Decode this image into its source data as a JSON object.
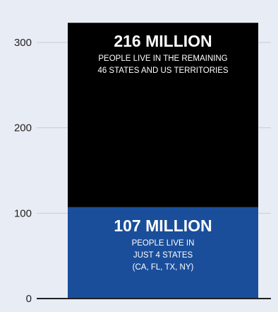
{
  "chart_data": {
    "type": "bar",
    "stacked": true,
    "title": "",
    "xlabel": "",
    "ylabel": "",
    "ylim": [
      0,
      322
    ],
    "yticks": [
      0,
      100,
      200,
      300
    ],
    "grid": true,
    "series": [
      {
        "value": 107,
        "color": "#1a4e9b",
        "label_big": "107 MILLION",
        "label_lines": [
          "PEOPLE LIVE IN",
          "JUST 4 STATES",
          "(CA, FL, TX, NY)"
        ]
      },
      {
        "value": 216,
        "color": "#000000",
        "label_big": "216 MILLION",
        "label_lines": [
          "PEOPLE LIVE IN THE REMAINING",
          "46 STATES AND US TERRITORIES"
        ]
      }
    ],
    "colors": {
      "background": "#e8ecf4",
      "grid": "#c6ccd6",
      "axis": "#222222",
      "text_on_bar": "#ffffff"
    }
  }
}
